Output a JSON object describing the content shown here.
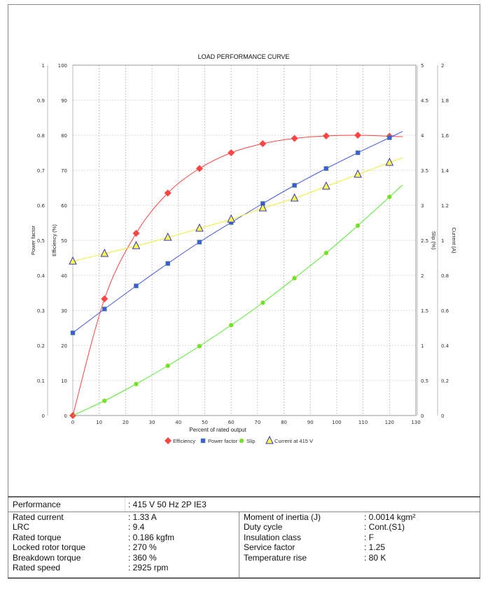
{
  "chart_data": {
    "type": "line",
    "title": "LOAD PERFORMANCE CURVE",
    "xlabel": "Percent of rated output",
    "xlim": [
      0,
      130
    ],
    "xticks": [
      0,
      10,
      20,
      30,
      40,
      50,
      60,
      70,
      80,
      90,
      100,
      110,
      120,
      130
    ],
    "grid": true,
    "legend_position": "bottom",
    "axes": {
      "power_factor": {
        "label": "Power factor",
        "lim": [
          0,
          1
        ],
        "ticks": [
          "0",
          "0.1",
          "0.2",
          "0.3",
          "0.4",
          "0.5",
          "0.6",
          "0.7",
          "0.8",
          "0.9",
          "1"
        ]
      },
      "efficiency": {
        "label": "Efficiency (%)",
        "lim": [
          0,
          100
        ],
        "ticks": [
          "0",
          "10",
          "20",
          "30",
          "40",
          "50",
          "60",
          "70",
          "80",
          "90",
          "100"
        ]
      },
      "slip": {
        "label": "Slip (%)",
        "lim": [
          0,
          5
        ],
        "ticks": [
          "0",
          "0.5",
          "1",
          "1.5",
          "2",
          "2.5",
          "3",
          "3.5",
          "4",
          "4.5",
          "5"
        ]
      },
      "current": {
        "label": "Current (A)",
        "lim": [
          0,
          2
        ],
        "ticks": [
          "0",
          "0.2",
          "0.4",
          "0.6",
          "0.8",
          "1",
          "1.2",
          "1.4",
          "1.6",
          "1.8",
          "2"
        ]
      }
    },
    "x": [
      0,
      12,
      24,
      36,
      48,
      60,
      72,
      84,
      96,
      108,
      120
    ],
    "series": [
      {
        "name": "Efficiency",
        "axis": "efficiency",
        "color": "#ff4444",
        "marker": "diamond",
        "values": [
          0,
          33.3,
          52,
          63.5,
          70.5,
          75,
          77.6,
          79.1,
          79.8,
          80,
          79.7
        ]
      },
      {
        "name": "Power factor",
        "axis": "power_factor",
        "color": "#4455ee",
        "marker": "square",
        "values": [
          0.236,
          0.304,
          0.37,
          0.434,
          0.495,
          0.551,
          0.605,
          0.657,
          0.705,
          0.75,
          0.793
        ]
      },
      {
        "name": "Slip",
        "axis": "slip",
        "color": "#55ee33",
        "marker": "circle",
        "values": [
          0,
          0.21,
          0.45,
          0.71,
          0.99,
          1.29,
          1.61,
          1.96,
          2.32,
          2.71,
          3.12
        ]
      },
      {
        "name": "Current at 415 V",
        "axis": "current",
        "color": "#ffff44",
        "marker": "triangle",
        "values": [
          0.88,
          0.924,
          0.968,
          1.016,
          1.068,
          1.12,
          1.184,
          1.24,
          1.308,
          1.376,
          1.444
        ]
      }
    ]
  },
  "table": {
    "performance_label": "Performance",
    "performance_value": ": 415 V 50 Hz 2P IE3",
    "left": [
      {
        "label": "Rated current",
        "value": ": 1.33 A"
      },
      {
        "label": "LRC",
        "value": ": 9.4"
      },
      {
        "label": "Rated torque",
        "value": ": 0.186 kgfm"
      },
      {
        "label": "Locked rotor torque",
        "value": ": 270 %"
      },
      {
        "label": "Breakdown torque",
        "value": ": 360 %"
      },
      {
        "label": "Rated speed",
        "value": ": 2925 rpm"
      }
    ],
    "right": [
      {
        "label": "Moment of inertia (J)",
        "value": ": 0.0014 kgm²"
      },
      {
        "label": "Duty cycle",
        "value": ": Cont.(S1)"
      },
      {
        "label": "Insulation class",
        "value": ": F"
      },
      {
        "label": "Service factor",
        "value": ": 1.25"
      },
      {
        "label": "Temperature rise",
        "value": ": 80 K"
      }
    ]
  }
}
